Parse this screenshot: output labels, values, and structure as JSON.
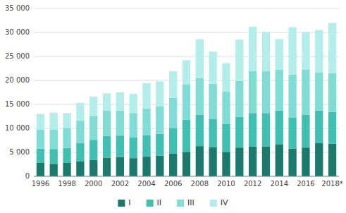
{
  "chart_data": {
    "type": "bar",
    "stacked": true,
    "grid": true,
    "legend": "bottom",
    "categories": [
      "1996",
      null,
      "1998",
      null,
      "2000",
      null,
      "2002",
      null,
      "2004",
      null,
      "2006",
      null,
      "2008",
      null,
      "2010",
      null,
      "2012",
      null,
      "2014",
      null,
      "2016",
      null,
      "2018*"
    ],
    "series": [
      {
        "name": "I",
        "color": "#1b7a6d",
        "values": [
          2800,
          2600,
          2800,
          3100,
          3400,
          3900,
          4000,
          3800,
          4100,
          4300,
          4700,
          5100,
          6300,
          6100,
          5100,
          6000,
          6200,
          6200,
          6700,
          5800,
          6000,
          6900,
          6800
        ]
      },
      {
        "name": "II",
        "color": "#40c0b3",
        "values": [
          3000,
          3100,
          3100,
          3800,
          4200,
          4500,
          4500,
          4300,
          4500,
          4600,
          5300,
          6700,
          6500,
          5900,
          5800,
          6400,
          7000,
          7000,
          7000,
          6400,
          6800,
          6800,
          6600
        ]
      },
      {
        "name": "III",
        "color": "#80ddd6",
        "values": [
          4000,
          4100,
          4200,
          4700,
          5000,
          5300,
          5200,
          5100,
          5500,
          5700,
          6400,
          7400,
          7700,
          7300,
          6800,
          7500,
          8800,
          8700,
          8500,
          9000,
          9500,
          8000,
          8100
        ]
      },
      {
        "name": "IV",
        "color": "#b3eeea",
        "values": [
          3200,
          3500,
          3100,
          3700,
          4000,
          3600,
          3800,
          4000,
          5300,
          5200,
          5500,
          5000,
          8100,
          6700,
          5900,
          8600,
          9200,
          8200,
          6400,
          9900,
          7800,
          8800,
          10500
        ]
      }
    ],
    "ylim": [
      0,
      35000
    ],
    "yticks": [
      0,
      {
        "value": 5000,
        "label": "5 000"
      },
      {
        "value": 10000,
        "label": "10 000"
      },
      {
        "value": 15000,
        "label": "15 000"
      },
      {
        "value": 20000,
        "label": "20 000"
      },
      {
        "value": 25000,
        "label": "25 000"
      },
      {
        "value": 30000,
        "label": "30 000"
      },
      {
        "value": 35000,
        "label": "35 000"
      }
    ]
  }
}
